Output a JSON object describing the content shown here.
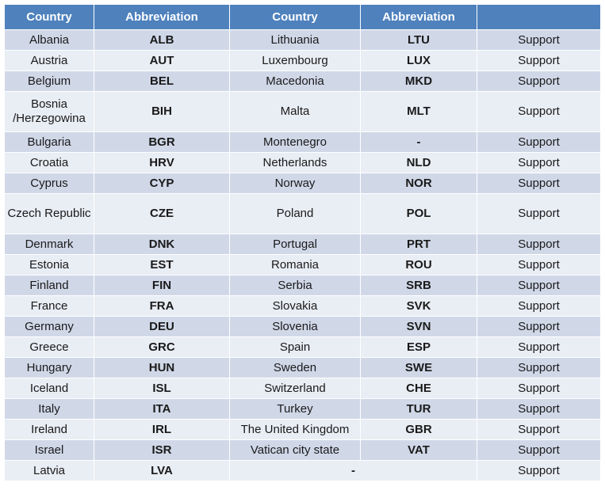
{
  "table": {
    "headers": [
      "Country",
      "Abbreviation",
      "Country",
      "Abbreviation",
      ""
    ],
    "rows": [
      {
        "c1": "Albania",
        "a1": "ALB",
        "c2": "Lithuania",
        "a2": "LTU",
        "s": "Support"
      },
      {
        "c1": "Austria",
        "a1": "AUT",
        "c2": "Luxembourg",
        "a2": "LUX",
        "s": "Support"
      },
      {
        "c1": "Belgium",
        "a1": "BEL",
        "c2": "Macedonia",
        "a2": "MKD",
        "s": "Support"
      },
      {
        "c1": "Bosnia /Herzegowina",
        "a1": "BIH",
        "c2": "Malta",
        "a2": "MLT",
        "s": "Support"
      },
      {
        "c1": "Bulgaria",
        "a1": "BGR",
        "c2": "Montenegro",
        "a2": "-",
        "s": "Support"
      },
      {
        "c1": "Croatia",
        "a1": "HRV",
        "c2": "Netherlands",
        "a2": "NLD",
        "s": "Support"
      },
      {
        "c1": "Cyprus",
        "a1": "CYP",
        "c2": "Norway",
        "a2": "NOR",
        "s": "Support"
      },
      {
        "c1": "Czech Republic",
        "a1": "CZE",
        "c2": "Poland",
        "a2": "POL",
        "s": "Support"
      },
      {
        "c1": "Denmark",
        "a1": "DNK",
        "c2": "Portugal",
        "a2": "PRT",
        "s": "Support"
      },
      {
        "c1": "Estonia",
        "a1": "EST",
        "c2": "Romania",
        "a2": "ROU",
        "s": "Support"
      },
      {
        "c1": "Finland",
        "a1": "FIN",
        "c2": "Serbia",
        "a2": "SRB",
        "s": "Support"
      },
      {
        "c1": "France",
        "a1": "FRA",
        "c2": "Slovakia",
        "a2": "SVK",
        "s": "Support"
      },
      {
        "c1": "Germany",
        "a1": "DEU",
        "c2": "Slovenia",
        "a2": "SVN",
        "s": "Support"
      },
      {
        "c1": "Greece",
        "a1": "GRC",
        "c2": "Spain",
        "a2": "ESP",
        "s": "Support"
      },
      {
        "c1": "Hungary",
        "a1": "HUN",
        "c2": "Sweden",
        "a2": "SWE",
        "s": "Support"
      },
      {
        "c1": "Iceland",
        "a1": "ISL",
        "c2": "Switzerland",
        "a2": "CHE",
        "s": "Support"
      },
      {
        "c1": "Italy",
        "a1": "ITA",
        "c2": "Turkey",
        "a2": "TUR",
        "s": "Support"
      },
      {
        "c1": "Ireland",
        "a1": "IRL",
        "c2": "The United Kingdom",
        "a2": "GBR",
        "s": "Support"
      },
      {
        "c1": "Israel",
        "a1": "ISR",
        "c2": "Vatican city state",
        "a2": "VAT",
        "s": "Support"
      }
    ],
    "last_row": {
      "c1": "Latvia",
      "a1": "LVA",
      "merged": "-",
      "s": "Support"
    }
  }
}
